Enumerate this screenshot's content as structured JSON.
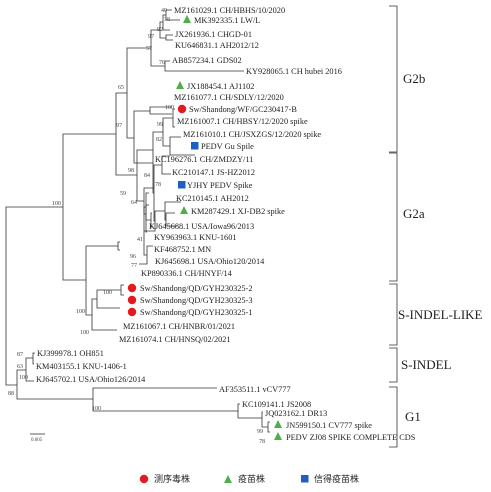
{
  "tree": {
    "leaves": [
      {
        "id": "l1",
        "label": "MZ161029.1 CH/HBHS/10/2020"
      },
      {
        "id": "l2",
        "label": "MK392335.1 LW/L",
        "marker": "vaccine"
      },
      {
        "id": "l3",
        "label": "JX261936.1 CHGD-01"
      },
      {
        "id": "l4",
        "label": "KU646831.1 AH2012/12"
      },
      {
        "id": "l5",
        "label": "AB857234.1 GDS02"
      },
      {
        "id": "l6",
        "label": "KY928065.1 CH hubei 2016"
      },
      {
        "id": "l7",
        "label": "JX188454.1 AJ1102",
        "marker": "vaccine"
      },
      {
        "id": "l8",
        "label": "MZ161077.1 CH/SDLY/12/2020"
      },
      {
        "id": "l9",
        "label": "Sw/Shandong/WF/GC230417-B",
        "marker": "epidemic"
      },
      {
        "id": "l10",
        "label": "MZ161007.1 CH/HBSY/12/2020 spike"
      },
      {
        "id": "l11",
        "label": "MZ161010.1 CH/JSXZGS/12/2020 spike"
      },
      {
        "id": "l12",
        "label": "PEDV Gu Spile",
        "marker": "trusted"
      },
      {
        "id": "l13",
        "label": "KC196276.1 CH/ZMDZY/11"
      },
      {
        "id": "l14",
        "label": "KC210147.1 JS-HZ2012"
      },
      {
        "id": "l15",
        "label": "YJHY PEDV Spike",
        "marker": "trusted"
      },
      {
        "id": "l16",
        "label": "KC210145.1 AH2012"
      },
      {
        "id": "l17",
        "label": "KM287429.1 XJ-DB2 spike",
        "marker": "vaccine"
      },
      {
        "id": "l18",
        "label": "KJ645688.1 USA/Iowa96/2013"
      },
      {
        "id": "l19",
        "label": "KY963963.1 KNU-1601"
      },
      {
        "id": "l20",
        "label": "KF468752.1 MN"
      },
      {
        "id": "l21",
        "label": "KJ645698.1 USA/Ohio120/2014"
      },
      {
        "id": "l22",
        "label": "KP890336.1 CH/HNYF/14"
      },
      {
        "id": "l23",
        "label": "Sw/Shandong/QD/GYH230325-2",
        "marker": "epidemic"
      },
      {
        "id": "l24",
        "label": "Sw/Shandong/QD/GYH230325-3",
        "marker": "epidemic"
      },
      {
        "id": "l25",
        "label": "Sw/Shandong/QD/GYH230325-1",
        "marker": "epidemic"
      },
      {
        "id": "l26",
        "label": "MZ161067.1 CH/HNBR/01/2021"
      },
      {
        "id": "l27",
        "label": "MZ161074.1 CH/HNSQ/02/2021"
      },
      {
        "id": "l28",
        "label": "KJ399978.1 OH851"
      },
      {
        "id": "l29",
        "label": "KM403155.1 KNU-1406-1"
      },
      {
        "id": "l30",
        "label": "KJ645702.1 USA/Ohio126/2014"
      },
      {
        "id": "l31",
        "label": "AF353511.1 vCV777"
      },
      {
        "id": "l32",
        "label": "KC109141.1 JS2008"
      },
      {
        "id": "l33",
        "label": "JQ023162.1 DR13"
      },
      {
        "id": "l34",
        "label": "JN599150.1 CV777 spike",
        "marker": "vaccine"
      },
      {
        "id": "l35",
        "label": "PEDV ZJ08 SPIKE COMPLETE CDS",
        "marker": "vaccine"
      }
    ],
    "bootstrap": [
      "40",
      "38",
      "92",
      "97",
      "57",
      "76",
      "65",
      "100",
      "99",
      "82",
      "97",
      "84",
      "78",
      "59",
      "98",
      "64",
      "41",
      "96",
      "77",
      "100",
      "100",
      "100",
      "100",
      "87",
      "63",
      "100",
      "88",
      "100",
      "99",
      "78"
    ],
    "clades": [
      "G2b",
      "G2a",
      "S-INDEL-LIKE",
      "S-INDEL",
      "G1"
    ],
    "scale_label": "0.005"
  },
  "legend": {
    "items": [
      {
        "label": "测序毒株",
        "color": "#e41a1c",
        "shape": "circle"
      },
      {
        "label": "疫苗株",
        "color": "#4daf4a",
        "shape": "triangle"
      },
      {
        "label": "信得疫苗株",
        "color": "#1f5fbf",
        "shape": "square"
      }
    ]
  }
}
